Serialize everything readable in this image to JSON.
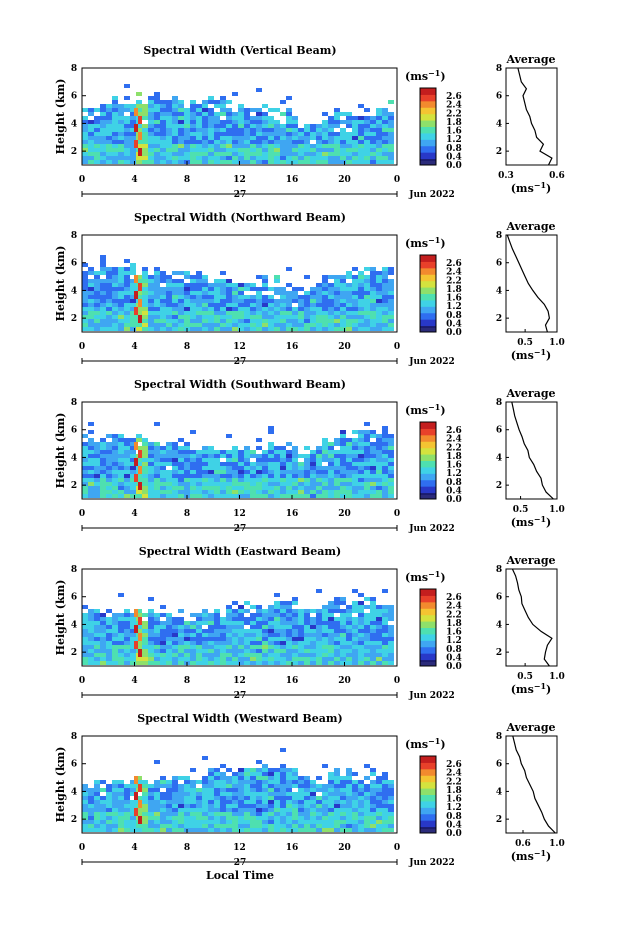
{
  "colors": {
    "colormap": [
      "#1c1c6e",
      "#2838c8",
      "#2f6ef0",
      "#3fa6f2",
      "#3fd2e6",
      "#4ee0b0",
      "#8ee06a",
      "#d4e23e",
      "#f4c432",
      "#f28a2e",
      "#e8402a",
      "#c41e1e"
    ],
    "low": "#2b2b7a",
    "ink": "#000000"
  },
  "shared": {
    "ylabel": "Height (km)",
    "xlabel": "Local Time",
    "date_day": "27",
    "date_month": "Jun 2022",
    "unit": "(ms",
    "unit_exp": "−1",
    "unit_close": ")",
    "avg_title": "Average",
    "x_ticks": [
      "0",
      "4",
      "8",
      "12",
      "16",
      "20",
      "0"
    ],
    "y_ticks": [
      "8",
      "6",
      "4",
      "2"
    ],
    "cbar_ticks_a": [
      "2.6",
      "2.4",
      "2.2",
      "1.8",
      "1.6",
      "1.2",
      "0.8",
      "0.4",
      "0.0"
    ],
    "cbar_ticks_b": [
      "2.6",
      "2.4",
      "2.2",
      "1.8",
      "1.6",
      "1.2",
      "0.8",
      "0.4",
      "0.0"
    ]
  },
  "chart_data": [
    {
      "type": "heatmap",
      "title": "Spectral Width (Vertical Beam)",
      "x_range": [
        0,
        24
      ],
      "y_range": [
        1,
        8
      ],
      "seed": 3,
      "avg_xticks": [
        "0.3",
        "0.6"
      ],
      "avg_xlim": [
        0.3,
        0.6
      ],
      "average_profile": [
        {
          "h": 1.0,
          "v": 0.55
        },
        {
          "h": 1.5,
          "v": 0.57
        },
        {
          "h": 2.0,
          "v": 0.5
        },
        {
          "h": 2.5,
          "v": 0.52
        },
        {
          "h": 3.0,
          "v": 0.48
        },
        {
          "h": 3.5,
          "v": 0.47
        },
        {
          "h": 4.0,
          "v": 0.45
        },
        {
          "h": 4.5,
          "v": 0.44
        },
        {
          "h": 5.0,
          "v": 0.42
        },
        {
          "h": 5.5,
          "v": 0.41
        },
        {
          "h": 6.0,
          "v": 0.4
        },
        {
          "h": 6.5,
          "v": 0.42
        },
        {
          "h": 7.0,
          "v": 0.39
        },
        {
          "h": 7.5,
          "v": 0.38
        },
        {
          "h": 8.0,
          "v": 0.37
        }
      ]
    },
    {
      "type": "heatmap",
      "title": "Spectral Width (Northward Beam)",
      "x_range": [
        0,
        24
      ],
      "y_range": [
        1,
        8
      ],
      "seed": 7,
      "avg_xticks": [
        "0.5",
        "1.0"
      ],
      "avg_xlim": [
        0.2,
        1.0
      ],
      "average_profile": [
        {
          "h": 1.0,
          "v": 0.85
        },
        {
          "h": 1.5,
          "v": 0.82
        },
        {
          "h": 2.0,
          "v": 0.88
        },
        {
          "h": 2.5,
          "v": 0.86
        },
        {
          "h": 3.0,
          "v": 0.8
        },
        {
          "h": 3.5,
          "v": 0.7
        },
        {
          "h": 4.0,
          "v": 0.62
        },
        {
          "h": 4.5,
          "v": 0.55
        },
        {
          "h": 5.0,
          "v": 0.5
        },
        {
          "h": 5.5,
          "v": 0.45
        },
        {
          "h": 6.0,
          "v": 0.4
        },
        {
          "h": 6.5,
          "v": 0.35
        },
        {
          "h": 7.0,
          "v": 0.3
        },
        {
          "h": 7.5,
          "v": 0.26
        },
        {
          "h": 8.0,
          "v": 0.22
        }
      ]
    },
    {
      "type": "heatmap",
      "title": "Spectral Width (Southward Beam)",
      "x_range": [
        0,
        24
      ],
      "y_range": [
        1,
        8
      ],
      "seed": 11,
      "avg_xticks": [
        "0.5",
        "1.0"
      ],
      "avg_xlim": [
        0.3,
        1.0
      ],
      "average_profile": [
        {
          "h": 1.0,
          "v": 0.95
        },
        {
          "h": 1.5,
          "v": 0.85
        },
        {
          "h": 2.0,
          "v": 0.8
        },
        {
          "h": 2.5,
          "v": 0.78
        },
        {
          "h": 3.0,
          "v": 0.72
        },
        {
          "h": 3.5,
          "v": 0.68
        },
        {
          "h": 4.0,
          "v": 0.62
        },
        {
          "h": 4.5,
          "v": 0.6
        },
        {
          "h": 5.0,
          "v": 0.55
        },
        {
          "h": 5.5,
          "v": 0.52
        },
        {
          "h": 6.0,
          "v": 0.48
        },
        {
          "h": 6.5,
          "v": 0.45
        },
        {
          "h": 7.0,
          "v": 0.42
        },
        {
          "h": 7.5,
          "v": 0.4
        },
        {
          "h": 8.0,
          "v": 0.38
        }
      ]
    },
    {
      "type": "heatmap",
      "title": "Spectral Width (Eastward Beam)",
      "x_range": [
        0,
        24
      ],
      "y_range": [
        1,
        8
      ],
      "seed": 17,
      "avg_xticks": [
        "0.5",
        "1.0"
      ],
      "avg_xlim": [
        0.2,
        1.0
      ],
      "average_profile": [
        {
          "h": 1.0,
          "v": 0.88
        },
        {
          "h": 1.5,
          "v": 0.8
        },
        {
          "h": 2.0,
          "v": 0.82
        },
        {
          "h": 2.5,
          "v": 0.85
        },
        {
          "h": 3.0,
          "v": 0.92
        },
        {
          "h": 3.5,
          "v": 0.75
        },
        {
          "h": 4.0,
          "v": 0.62
        },
        {
          "h": 4.5,
          "v": 0.55
        },
        {
          "h": 5.0,
          "v": 0.5
        },
        {
          "h": 5.5,
          "v": 0.45
        },
        {
          "h": 6.0,
          "v": 0.44
        },
        {
          "h": 6.5,
          "v": 0.4
        },
        {
          "h": 7.0,
          "v": 0.38
        },
        {
          "h": 7.5,
          "v": 0.35
        },
        {
          "h": 8.0,
          "v": 0.3
        }
      ]
    },
    {
      "type": "heatmap",
      "title": "Spectral Width (Westward Beam)",
      "x_range": [
        0,
        24
      ],
      "y_range": [
        1,
        8
      ],
      "seed": 23,
      "avg_xticks": [
        "0.6",
        "1.0"
      ],
      "avg_xlim": [
        0.4,
        1.0
      ],
      "average_profile": [
        {
          "h": 1.0,
          "v": 0.98
        },
        {
          "h": 1.5,
          "v": 0.9
        },
        {
          "h": 2.0,
          "v": 0.85
        },
        {
          "h": 2.5,
          "v": 0.82
        },
        {
          "h": 3.0,
          "v": 0.78
        },
        {
          "h": 3.5,
          "v": 0.74
        },
        {
          "h": 4.0,
          "v": 0.72
        },
        {
          "h": 4.5,
          "v": 0.68
        },
        {
          "h": 5.0,
          "v": 0.64
        },
        {
          "h": 5.5,
          "v": 0.62
        },
        {
          "h": 6.0,
          "v": 0.58
        },
        {
          "h": 6.5,
          "v": 0.56
        },
        {
          "h": 7.0,
          "v": 0.52
        },
        {
          "h": 7.5,
          "v": 0.5
        },
        {
          "h": 8.0,
          "v": 0.48
        }
      ]
    }
  ]
}
